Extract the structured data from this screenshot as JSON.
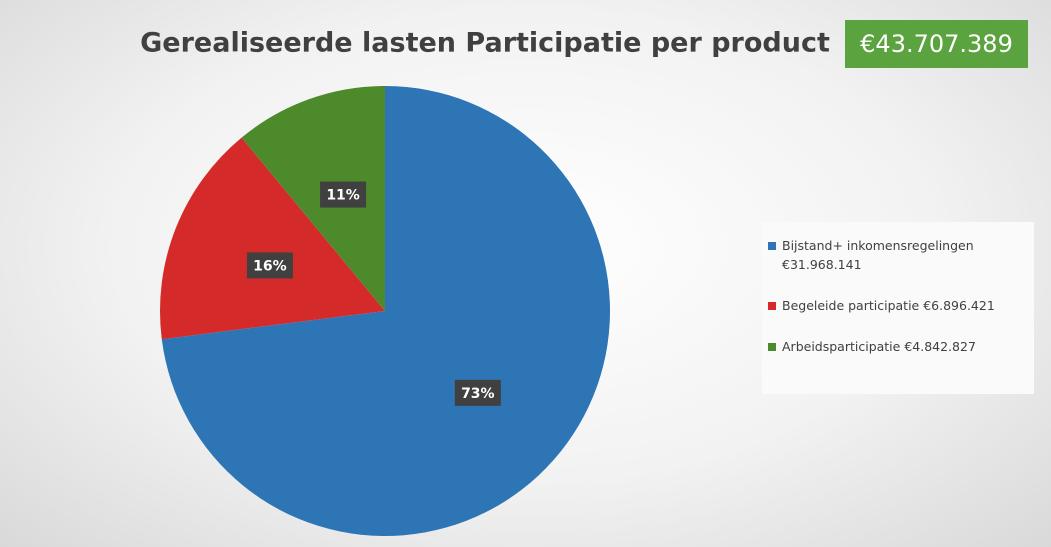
{
  "chart_data": {
    "type": "pie",
    "title": "Gerealiseerde lasten Participatie per product",
    "total": "€43.707.389",
    "series": [
      {
        "name": "Bijstand+ inkomensregelingen €31.968.141",
        "color": "#2e75b6",
        "values": [
          73
        ],
        "value_labels": [
          "73%"
        ]
      },
      {
        "name": "Begeleide participatie €6.896.421",
        "color": "#d42a2a",
        "values": [
          16
        ],
        "value_labels": [
          "16%"
        ]
      },
      {
        "name": "Arbeidsparticipatie €4.842.827",
        "color": "#4c8a2c",
        "values": [
          11
        ],
        "value_labels": [
          "11%"
        ]
      }
    ],
    "legend": "right"
  }
}
